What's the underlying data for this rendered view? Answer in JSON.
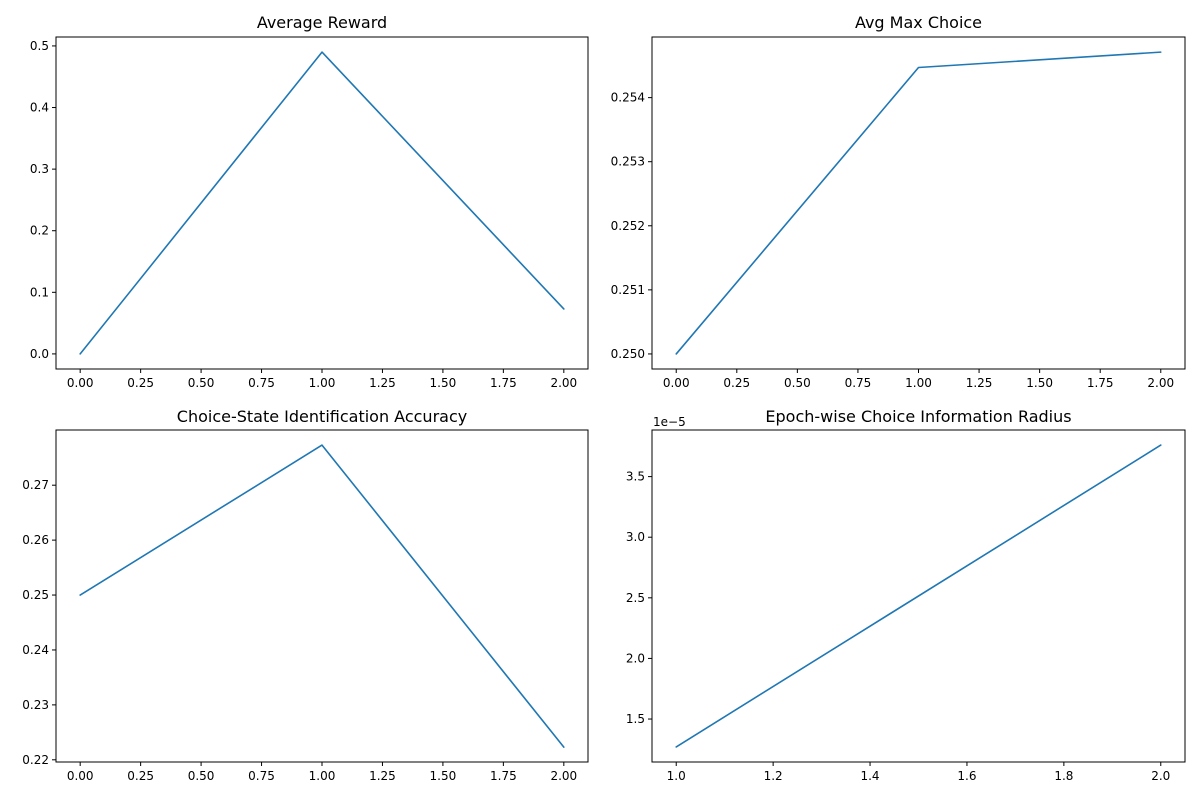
{
  "figure": {
    "background": "#ffffff",
    "line_color": "#1f77b4"
  },
  "chart_data": [
    {
      "type": "line",
      "title": "Average Reward",
      "xlabel": "",
      "ylabel": "",
      "grid": false,
      "series": [
        {
          "x": [
            0,
            1,
            2
          ],
          "values": [
            0.0,
            0.49,
            0.073
          ]
        }
      ],
      "xlim": [
        -0.1,
        2.1
      ],
      "ylim": [
        -0.0245,
        0.5145
      ],
      "xticks": [
        0,
        0.25,
        0.5,
        0.75,
        1.0,
        1.25,
        1.5,
        1.75,
        2.0
      ],
      "xtick_labels": [
        "0.00",
        "0.25",
        "0.50",
        "0.75",
        "1.00",
        "1.25",
        "1.50",
        "1.75",
        "2.00"
      ],
      "yticks": [
        0.0,
        0.1,
        0.2,
        0.3,
        0.4,
        0.5
      ],
      "ytick_labels": [
        "0.0",
        "0.1",
        "0.2",
        "0.3",
        "0.4",
        "0.5"
      ],
      "offset_text": ""
    },
    {
      "type": "line",
      "title": "Avg Max Choice",
      "xlabel": "",
      "ylabel": "",
      "grid": false,
      "series": [
        {
          "x": [
            0,
            1,
            2
          ],
          "values": [
            0.25,
            0.25447,
            0.25471
          ]
        }
      ],
      "xlim": [
        -0.1,
        2.1
      ],
      "ylim": [
        0.249765,
        0.254946
      ],
      "xticks": [
        0,
        0.25,
        0.5,
        0.75,
        1.0,
        1.25,
        1.5,
        1.75,
        2.0
      ],
      "xtick_labels": [
        "0.00",
        "0.25",
        "0.50",
        "0.75",
        "1.00",
        "1.25",
        "1.50",
        "1.75",
        "2.00"
      ],
      "yticks": [
        0.25,
        0.251,
        0.252,
        0.253,
        0.254
      ],
      "ytick_labels": [
        "0.250",
        "0.251",
        "0.252",
        "0.253",
        "0.254"
      ],
      "offset_text": ""
    },
    {
      "type": "line",
      "title": "Choice-State Identification Accuracy",
      "xlabel": "",
      "ylabel": "",
      "grid": false,
      "series": [
        {
          "x": [
            0,
            1,
            2
          ],
          "values": [
            0.25,
            0.2773,
            0.2223
          ]
        }
      ],
      "xlim": [
        -0.1,
        2.1
      ],
      "ylim": [
        0.2196,
        0.28005
      ],
      "xticks": [
        0,
        0.25,
        0.5,
        0.75,
        1.0,
        1.25,
        1.5,
        1.75,
        2.0
      ],
      "xtick_labels": [
        "0.00",
        "0.25",
        "0.50",
        "0.75",
        "1.00",
        "1.25",
        "1.50",
        "1.75",
        "2.00"
      ],
      "yticks": [
        0.22,
        0.23,
        0.24,
        0.25,
        0.26,
        0.27
      ],
      "ytick_labels": [
        "0.22",
        "0.23",
        "0.24",
        "0.25",
        "0.26",
        "0.27"
      ],
      "offset_text": ""
    },
    {
      "type": "line",
      "title": "Epoch-wise Choice Information Radius",
      "xlabel": "",
      "ylabel": "",
      "grid": false,
      "series": [
        {
          "x": [
            1,
            2
          ],
          "values": [
            1.27,
            3.76
          ]
        }
      ],
      "xlim": [
        0.95,
        2.05
      ],
      "ylim": [
        1.1455,
        3.8845
      ],
      "xticks": [
        1.0,
        1.2,
        1.4,
        1.6,
        1.8,
        2.0
      ],
      "xtick_labels": [
        "1.0",
        "1.2",
        "1.4",
        "1.6",
        "1.8",
        "2.0"
      ],
      "yticks": [
        1.5,
        2.0,
        2.5,
        3.0,
        3.5
      ],
      "ytick_labels": [
        "1.5",
        "2.0",
        "2.5",
        "3.0",
        "3.5"
      ],
      "offset_text": "1e−5"
    }
  ]
}
